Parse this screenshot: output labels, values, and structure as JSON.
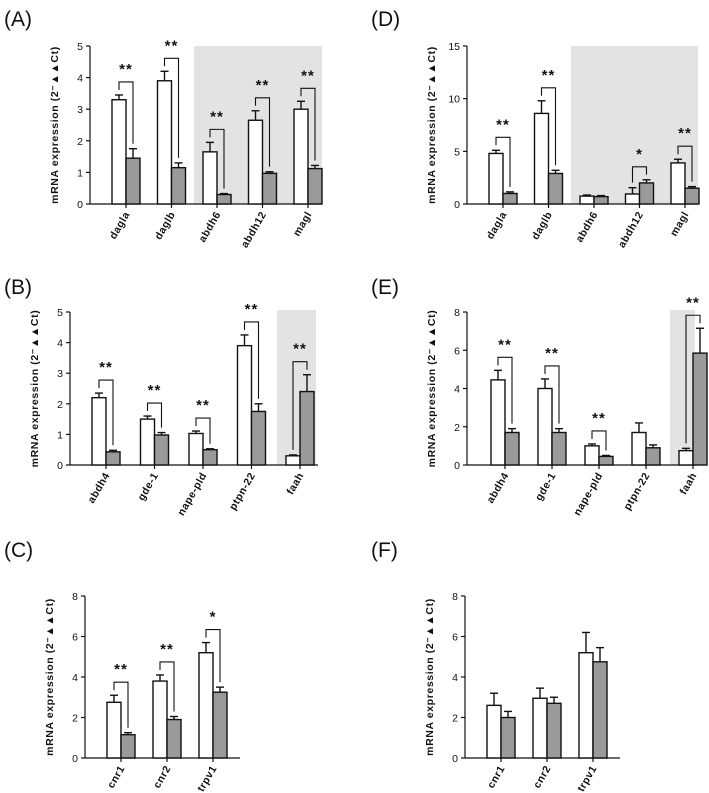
{
  "chart_data": [
    {
      "panel": "(A)",
      "type": "bar",
      "ylabel": "mRNA expression (2⁻▲▲Ct)",
      "ylim": [
        0,
        5
      ],
      "yticks": [
        0,
        1,
        2,
        3,
        4,
        5
      ],
      "categories": [
        "dagla",
        "daglb",
        "abdh6",
        "abdh12",
        "magl"
      ],
      "series": [
        {
          "color": "#ffffff",
          "values": [
            3.3,
            3.9,
            1.65,
            2.65,
            3.0
          ],
          "errors": [
            0.15,
            0.3,
            0.3,
            0.3,
            0.25
          ]
        },
        {
          "color": "#9a9a9a",
          "values": [
            1.45,
            1.15,
            0.3,
            0.97,
            1.12
          ],
          "errors": [
            0.3,
            0.15,
            0.03,
            0.05,
            0.1
          ]
        }
      ],
      "significance": [
        "**",
        "**",
        "**",
        "**",
        "**"
      ],
      "shaded_categories": [
        2,
        4
      ]
    },
    {
      "panel": "(D)",
      "type": "bar",
      "ylabel": "mRNA expression (2⁻▲▲Ct)",
      "ylim": [
        0,
        15
      ],
      "yticks": [
        0,
        5,
        10,
        15
      ],
      "categories": [
        "dagla",
        "daglb",
        "abdh6",
        "abdh12",
        "magl"
      ],
      "series": [
        {
          "color": "#ffffff",
          "values": [
            4.8,
            8.6,
            0.75,
            0.95,
            3.9
          ],
          "errors": [
            0.3,
            1.2,
            0.1,
            0.6,
            0.35
          ]
        },
        {
          "color": "#9a9a9a",
          "values": [
            1.0,
            2.9,
            0.7,
            2.0,
            1.5
          ],
          "errors": [
            0.15,
            0.3,
            0.1,
            0.3,
            0.15
          ]
        }
      ],
      "significance": [
        "**",
        "**",
        "",
        "*",
        "**"
      ],
      "shaded_categories": [
        2,
        4
      ]
    },
    {
      "panel": "(B)",
      "type": "bar",
      "ylabel": "mRNA expression (2⁻▲▲Ct)",
      "ylim": [
        0,
        5
      ],
      "yticks": [
        0,
        1,
        2,
        3,
        4,
        5
      ],
      "categories": [
        "abdh4",
        "gde-1",
        "nape-pld",
        "ptpn-22",
        "faah"
      ],
      "series": [
        {
          "color": "#ffffff",
          "values": [
            2.2,
            1.5,
            1.03,
            3.9,
            0.3
          ],
          "errors": [
            0.15,
            0.1,
            0.08,
            0.35,
            0.03
          ]
        },
        {
          "color": "#9a9a9a",
          "values": [
            0.43,
            0.98,
            0.5,
            1.75,
            2.4
          ],
          "errors": [
            0.05,
            0.08,
            0.03,
            0.25,
            0.55
          ]
        }
      ],
      "significance": [
        "**",
        "**",
        "**",
        "**",
        "**"
      ],
      "shaded_categories": [
        4,
        4
      ]
    },
    {
      "panel": "(E)",
      "type": "bar",
      "ylabel": "mRNA expression (2⁻▲▲Ct)",
      "ylim": [
        0,
        8
      ],
      "yticks": [
        0,
        2,
        4,
        6,
        8
      ],
      "categories": [
        "abdh4",
        "gde-1",
        "nape-pld",
        "ptpn-22",
        "faah"
      ],
      "series": [
        {
          "color": "#ffffff",
          "values": [
            4.45,
            4.0,
            1.0,
            1.7,
            0.75
          ],
          "errors": [
            0.5,
            0.5,
            0.1,
            0.5,
            0.12
          ]
        },
        {
          "color": "#9a9a9a",
          "values": [
            1.7,
            1.7,
            0.45,
            0.9,
            5.85
          ],
          "errors": [
            0.2,
            0.2,
            0.05,
            0.15,
            1.3
          ]
        }
      ],
      "significance": [
        "**",
        "**",
        "**",
        "",
        "**"
      ],
      "shaded_categories": [
        4,
        4
      ]
    },
    {
      "panel": "(C)",
      "type": "bar",
      "ylabel": "mRNA expression (2⁻▲▲Ct)",
      "ylim": [
        0,
        8
      ],
      "yticks": [
        0,
        2,
        4,
        6,
        8
      ],
      "categories": [
        "cnr1",
        "cnr2",
        "trpv1"
      ],
      "series": [
        {
          "color": "#ffffff",
          "values": [
            2.75,
            3.8,
            5.2
          ],
          "errors": [
            0.35,
            0.3,
            0.5
          ]
        },
        {
          "color": "#9a9a9a",
          "values": [
            1.15,
            1.9,
            3.25
          ],
          "errors": [
            0.1,
            0.15,
            0.25
          ]
        }
      ],
      "significance": [
        "**",
        "**",
        "*"
      ],
      "shaded_categories": null
    },
    {
      "panel": "(F)",
      "type": "bar",
      "ylabel": "mRNA expression (2⁻▲▲Ct)",
      "ylim": [
        0,
        8
      ],
      "yticks": [
        0,
        2,
        4,
        6,
        8
      ],
      "categories": [
        "cnr1",
        "cnr2",
        "trpv1"
      ],
      "series": [
        {
          "color": "#ffffff",
          "values": [
            2.6,
            2.95,
            5.2
          ],
          "errors": [
            0.6,
            0.5,
            1.0
          ]
        },
        {
          "color": "#9a9a9a",
          "values": [
            2.0,
            2.7,
            4.75
          ],
          "errors": [
            0.3,
            0.3,
            0.7
          ]
        }
      ],
      "significance": [
        "",
        "",
        ""
      ],
      "shaded_categories": null
    }
  ]
}
